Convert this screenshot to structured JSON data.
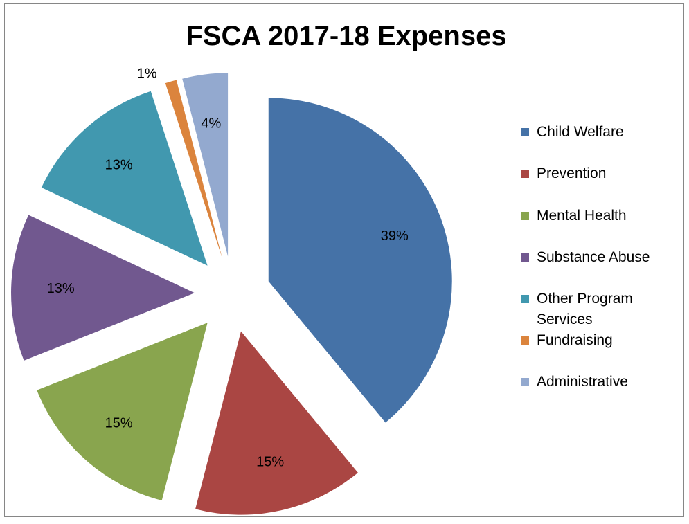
{
  "chart_data": {
    "type": "pie",
    "title": "FSCA 2017-18 Expenses",
    "exploded": true,
    "legend_position": "right",
    "categories": [
      "Child Welfare",
      "Prevention",
      "Mental Health",
      "Substance Abuse",
      "Other Program Services",
      "Fundraising",
      "Administrative"
    ],
    "values": [
      39,
      15,
      15,
      13,
      13,
      1,
      4
    ],
    "labels": [
      "39%",
      "15%",
      "15%",
      "13%",
      "13%",
      "1%",
      "4%"
    ],
    "colors": [
      "#4572A7",
      "#AA4643",
      "#89A54E",
      "#71588F",
      "#4198AF",
      "#DB843D",
      "#93A9CF"
    ]
  },
  "legend": {
    "items": [
      {
        "label": "Child Welfare",
        "color": "#4572A7"
      },
      {
        "label": "Prevention",
        "color": "#AA4643"
      },
      {
        "label": "Mental Health",
        "color": "#89A54E"
      },
      {
        "label": "Substance Abuse",
        "color": "#71588F"
      },
      {
        "label": "Other Program Services",
        "color": "#4198AF"
      },
      {
        "label": "Fundraising",
        "color": "#DB843D"
      },
      {
        "label": "Administrative",
        "color": "#93A9CF"
      }
    ]
  }
}
